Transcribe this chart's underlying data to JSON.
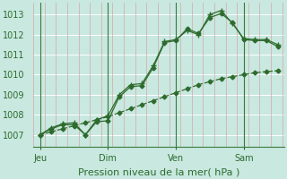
{
  "xlabel": "Pression niveau de la mer( hPa )",
  "bg_color": "#c8e8e0",
  "line_color": "#2d6b2d",
  "tick_label_color": "#2d6b2d",
  "axis_label_color": "#2d6b2d",
  "ylim": [
    1006.4,
    1013.6
  ],
  "yticks": [
    1007,
    1008,
    1009,
    1010,
    1011,
    1012,
    1013
  ],
  "xtick_labels": [
    "Jeu",
    "Dim",
    "Ven",
    "Sam"
  ],
  "xtick_positions": [
    0,
    3,
    6,
    9
  ],
  "xlim": [
    -0.3,
    10.8
  ],
  "minor_vline_color": "#d4a8a8",
  "major_vline_color": "#3a7a3a",
  "hline_color": "#ffffff",
  "line1_x": [
    0,
    0.5,
    1.0,
    1.5,
    2.0,
    2.5,
    3.0,
    3.5,
    4.0,
    4.5,
    5.0,
    5.5,
    6.0,
    6.5,
    7.0,
    7.5,
    8.0,
    8.5,
    9.0,
    9.5,
    10.0,
    10.5
  ],
  "line1_y": [
    1007.0,
    1007.15,
    1007.3,
    1007.45,
    1007.6,
    1007.75,
    1007.9,
    1008.1,
    1008.3,
    1008.5,
    1008.7,
    1008.9,
    1009.1,
    1009.3,
    1009.5,
    1009.65,
    1009.8,
    1009.9,
    1010.0,
    1010.1,
    1010.15,
    1010.2
  ],
  "line2_x": [
    0,
    0.5,
    1.0,
    1.5,
    2.0,
    2.5,
    3.0,
    3.5,
    4.0,
    4.5,
    5.0,
    5.5,
    6.0,
    6.5,
    7.0,
    7.5,
    8.0,
    8.5,
    9.0,
    9.5,
    10.0,
    10.5
  ],
  "line2_y": [
    1007.0,
    1007.3,
    1007.5,
    1007.5,
    1007.0,
    1007.65,
    1007.7,
    1008.9,
    1009.4,
    1009.45,
    1010.35,
    1011.6,
    1011.7,
    1012.3,
    1012.05,
    1012.85,
    1013.05,
    1012.6,
    1011.75,
    1011.7,
    1011.7,
    1011.4
  ],
  "line3_x": [
    0,
    0.5,
    1.0,
    1.5,
    2.0,
    2.5,
    3.0,
    3.5,
    4.0,
    4.5,
    5.0,
    5.5,
    6.0,
    6.5,
    7.0,
    7.5,
    8.0,
    8.5,
    9.0,
    9.5,
    10.0,
    10.5
  ],
  "line3_y": [
    1007.0,
    1007.35,
    1007.55,
    1007.6,
    1007.0,
    1007.75,
    1007.95,
    1009.0,
    1009.5,
    1009.55,
    1010.45,
    1011.65,
    1011.75,
    1012.2,
    1012.0,
    1013.0,
    1013.2,
    1012.55,
    1011.8,
    1011.75,
    1011.75,
    1011.5
  ]
}
